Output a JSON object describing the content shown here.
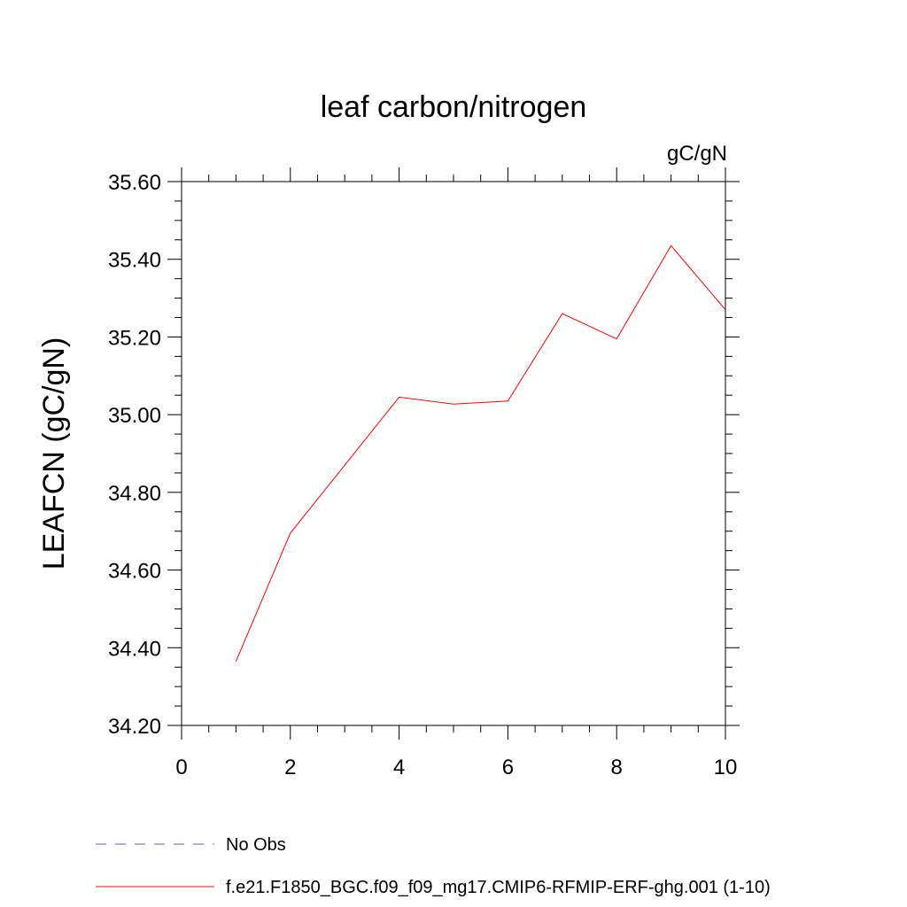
{
  "chart_data": {
    "type": "line",
    "title": "leaf carbon/nitrogen",
    "units": "gC/gN",
    "xlabel": "",
    "ylabel": "LEAFCN  (gC/gN)",
    "xlim": [
      0,
      10
    ],
    "ylim": [
      34.2,
      35.6
    ],
    "xticks": [
      "0",
      "2",
      "4",
      "6",
      "8",
      "10"
    ],
    "yticks": [
      "34.20",
      "34.40",
      "34.60",
      "34.80",
      "35.00",
      "35.20",
      "35.40",
      "35.60"
    ],
    "grid": false,
    "legend_position": "bottom-left",
    "series": [
      {
        "name": "f.e21.F1850_BGC.f09_f09_mg17.CMIP6-RFMIP-ERF-ghg.001 (1-10)",
        "color": "#ff0000",
        "style": "solid",
        "x": [
          1,
          2,
          3,
          4,
          5,
          6,
          7,
          8,
          9,
          10
        ],
        "values": [
          34.365,
          34.695,
          34.87,
          35.045,
          35.027,
          35.035,
          35.26,
          35.195,
          35.435,
          35.27
        ]
      }
    ],
    "legend": [
      {
        "label": "No Obs",
        "color": "#6a5acd",
        "style": "dashed"
      },
      {
        "label": "f.e21.F1850_BGC.f09_f09_mg17.CMIP6-RFMIP-ERF-ghg.001 (1-10)",
        "color": "#ff0000",
        "style": "solid"
      }
    ]
  }
}
